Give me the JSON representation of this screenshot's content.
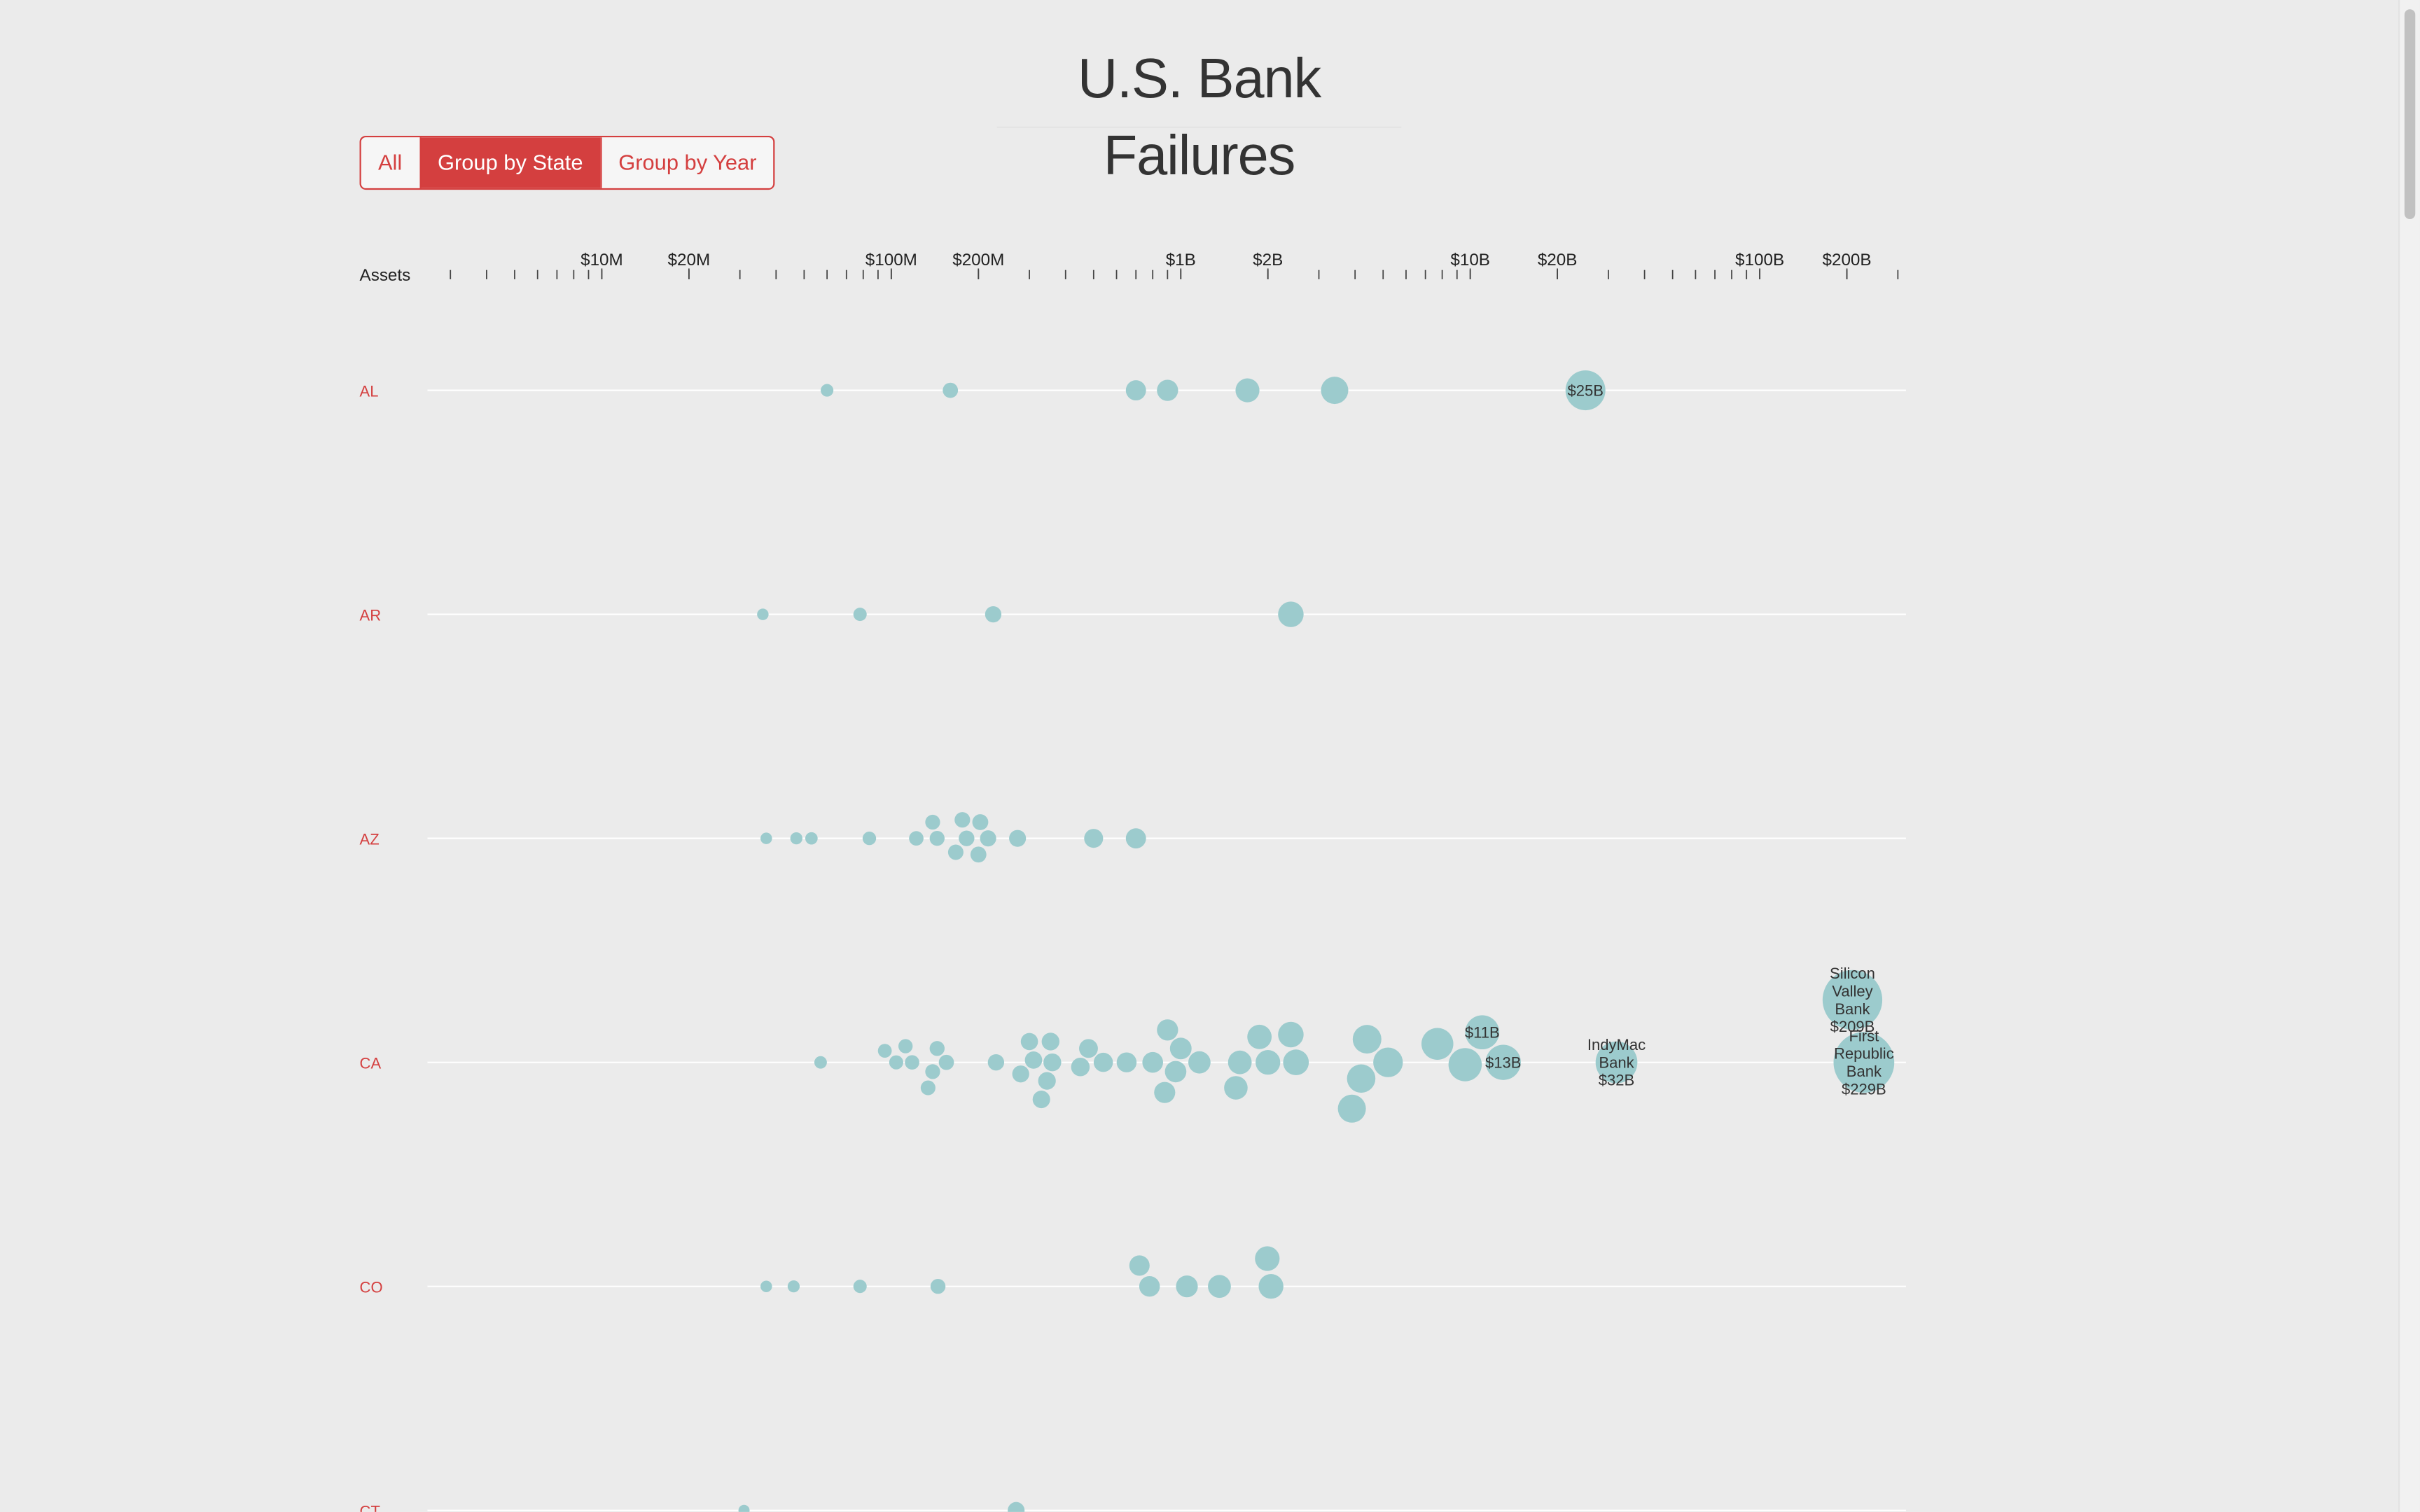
{
  "page": {
    "title": "U.S. Bank Failures",
    "buttons": [
      {
        "label": "All",
        "active": false
      },
      {
        "label": "Group by State",
        "active": true
      },
      {
        "label": "Group by Year",
        "active": false
      }
    ]
  },
  "colors": {
    "background": "#ebebeb",
    "accent": "#d43f3f",
    "bubble": "#9ccbcd",
    "row_line": "#ffffff",
    "text": "#333333"
  },
  "chart_data": {
    "type": "scatter",
    "xlabel": "Assets",
    "xscale": "log",
    "xlim": [
      2500000,
      320000000000
    ],
    "x_ticks": [
      {
        "value": 10000000,
        "label": "$10M"
      },
      {
        "value": 20000000,
        "label": "$20M"
      },
      {
        "value": 100000000,
        "label": "$100M"
      },
      {
        "value": 200000000,
        "label": "$200M"
      },
      {
        "value": 1000000000,
        "label": "$1B"
      },
      {
        "value": 2000000000,
        "label": "$2B"
      },
      {
        "value": 10000000000,
        "label": "$10B"
      },
      {
        "value": 20000000000,
        "label": "$20B"
      },
      {
        "value": 100000000000,
        "label": "$100B"
      },
      {
        "value": 200000000000,
        "label": "$200B"
      }
    ],
    "groups": [
      {
        "state": "AL",
        "banks": [
          {
            "assets": 60000000
          },
          {
            "assets": 160000000
          },
          {
            "assets": 700000000
          },
          {
            "assets": 900000000
          },
          {
            "assets": 1700000000
          },
          {
            "assets": 3400000000
          },
          {
            "assets": 25000000000,
            "label": "$25B"
          }
        ]
      },
      {
        "state": "AR",
        "banks": [
          {
            "assets": 36000000
          },
          {
            "assets": 78000000
          },
          {
            "assets": 225000000
          },
          {
            "assets": 2400000000
          }
        ]
      },
      {
        "state": "AZ",
        "banks": [
          {
            "assets": 37000000
          },
          {
            "assets": 47000000
          },
          {
            "assets": 53000000
          },
          {
            "assets": 84000000
          },
          {
            "assets": 122000000
          },
          {
            "assets": 139000000
          },
          {
            "assets": 144000000
          },
          {
            "assets": 167000000
          },
          {
            "assets": 176000000
          },
          {
            "assets": 182000000
          },
          {
            "assets": 200000000
          },
          {
            "assets": 203000000
          },
          {
            "assets": 216000000
          },
          {
            "assets": 273000000
          },
          {
            "assets": 500000000
          },
          {
            "assets": 700000000
          }
        ]
      },
      {
        "state": "CA",
        "banks": [
          {
            "assets": 57000000
          },
          {
            "assets": 95000000
          },
          {
            "assets": 104000000
          },
          {
            "assets": 118000000
          },
          {
            "assets": 112000000
          },
          {
            "assets": 134000000
          },
          {
            "assets": 144000000
          },
          {
            "assets": 155000000
          },
          {
            "assets": 139000000
          },
          {
            "assets": 230000000
          },
          {
            "assets": 280000000
          },
          {
            "assets": 300000000
          },
          {
            "assets": 330000000
          },
          {
            "assets": 310000000
          },
          {
            "assets": 355000000
          },
          {
            "assets": 360000000
          },
          {
            "assets": 345000000
          },
          {
            "assets": 450000000
          },
          {
            "assets": 540000000
          },
          {
            "assets": 480000000
          },
          {
            "assets": 650000000
          },
          {
            "assets": 800000000
          },
          {
            "assets": 900000000
          },
          {
            "assets": 880000000
          },
          {
            "assets": 960000000
          },
          {
            "assets": 1000000000
          },
          {
            "assets": 1160000000
          },
          {
            "assets": 1550000000
          },
          {
            "assets": 1600000000
          },
          {
            "assets": 1870000000
          },
          {
            "assets": 2000000000
          },
          {
            "assets": 2400000000
          },
          {
            "assets": 2500000000
          },
          {
            "assets": 3900000000
          },
          {
            "assets": 4200000000
          },
          {
            "assets": 4400000000
          },
          {
            "assets": 5200000000
          },
          {
            "assets": 7700000000
          },
          {
            "assets": 9600000000
          },
          {
            "assets": 11000000000,
            "label": "$11B"
          },
          {
            "assets": 13000000000,
            "label": "$13B"
          },
          {
            "assets": 32000000000,
            "label": "IndyMac Bank $32B"
          },
          {
            "assets": 229000000000,
            "label": "First Republic Bank $229B"
          },
          {
            "assets": 209000000000,
            "label": "Silicon Valley Bank $209B"
          }
        ]
      },
      {
        "state": "CO",
        "banks": [
          {
            "assets": 37000000
          },
          {
            "assets": 46000000
          },
          {
            "assets": 78000000
          },
          {
            "assets": 145000000
          },
          {
            "assets": 720000000
          },
          {
            "assets": 780000000
          },
          {
            "assets": 1050000000
          },
          {
            "assets": 1360000000
          },
          {
            "assets": 1990000000
          },
          {
            "assets": 2050000000
          }
        ]
      },
      {
        "state": "CT",
        "banks": [
          {
            "assets": 31000000
          },
          {
            "assets": 270000000
          }
        ]
      }
    ]
  }
}
